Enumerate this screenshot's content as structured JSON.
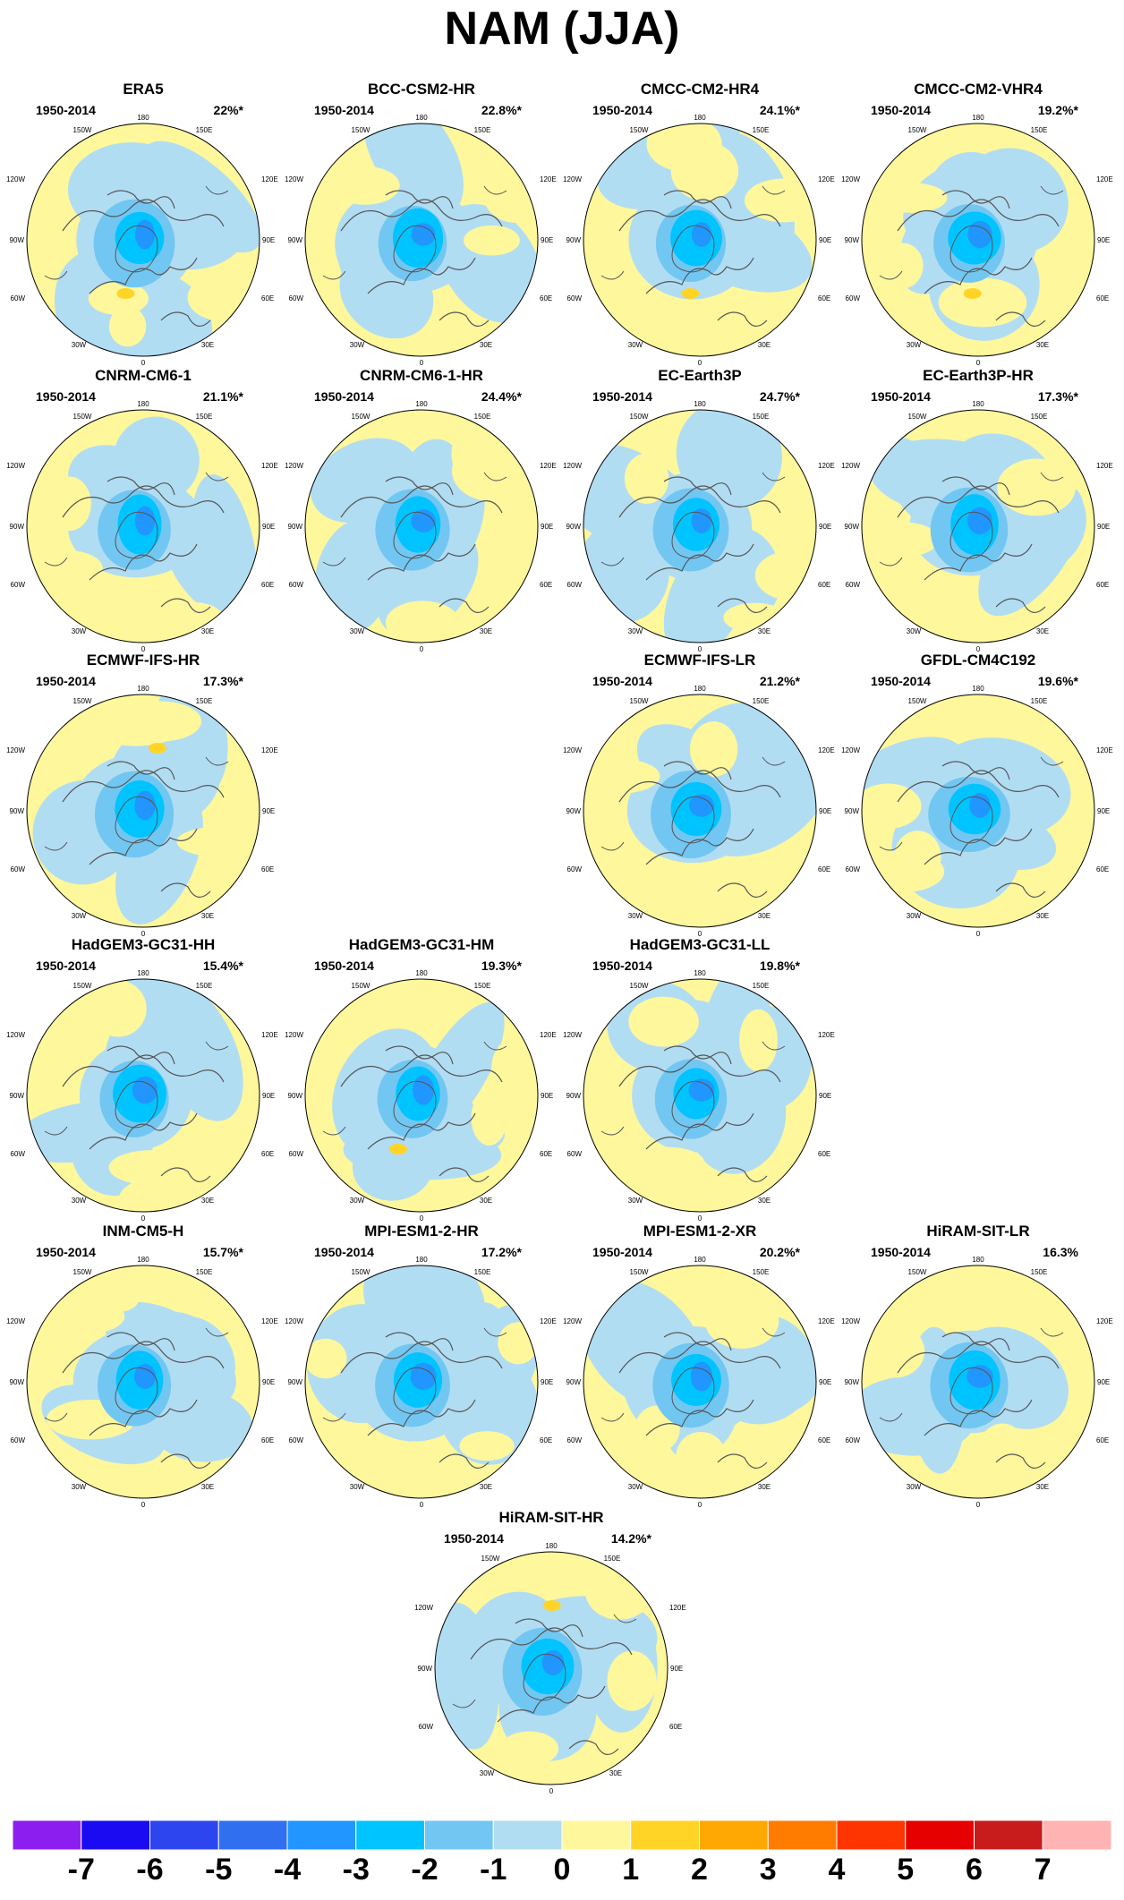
{
  "title": "NAM (JJA)",
  "period": "1950-2014",
  "lon_labels": [
    "180",
    "150W",
    "150E",
    "120W",
    "120E",
    "90W",
    "90E",
    "60W",
    "60E",
    "30W",
    "30E",
    "0"
  ],
  "panels": [
    {
      "name": "ERA5",
      "pct": "22%*",
      "variant": 0
    },
    {
      "name": "BCC-CSM2-HR",
      "pct": "22.8%*",
      "variant": 1
    },
    {
      "name": "CMCC-CM2-HR4",
      "pct": "24.1%*",
      "variant": 2
    },
    {
      "name": "CMCC-CM2-VHR4",
      "pct": "19.2%*",
      "variant": 3
    },
    {
      "name": "CNRM-CM6-1",
      "pct": "21.1%*",
      "variant": 4
    },
    {
      "name": "CNRM-CM6-1-HR",
      "pct": "24.4%*",
      "variant": 5
    },
    {
      "name": "EC-Earth3P",
      "pct": "24.7%*",
      "variant": 6
    },
    {
      "name": "EC-Earth3P-HR",
      "pct": "17.3%*",
      "variant": 7
    },
    {
      "name": "ECMWF-IFS-HR",
      "pct": "17.3%*",
      "variant": 8
    },
    {
      "name": "ECMWF-IFS-LR",
      "pct": "21.2%*",
      "variant": 9
    },
    {
      "name": "GFDL-CM4C192",
      "pct": "19.6%*",
      "variant": 10
    },
    {
      "name": "HadGEM3-GC31-HH",
      "pct": "15.4%*",
      "variant": 11
    },
    {
      "name": "HadGEM3-GC31-HM",
      "pct": "19.3%*",
      "variant": 12
    },
    {
      "name": "HadGEM3-GC31-LL",
      "pct": "19.8%*",
      "variant": 13
    },
    {
      "name": "INM-CM5-H",
      "pct": "15.7%*",
      "variant": 14
    },
    {
      "name": "MPI-ESM1-2-HR",
      "pct": "17.2%*",
      "variant": 15
    },
    {
      "name": "MPI-ESM1-2-XR",
      "pct": "20.2%*",
      "variant": 16
    },
    {
      "name": "HiRAM-SIT-LR",
      "pct": "16.3%",
      "variant": 17
    },
    {
      "name": "HiRAM-SIT-HR",
      "pct": "14.2%*",
      "variant": 18
    }
  ],
  "colorbar": {
    "labels": [
      "-7",
      "-6",
      "-5",
      "-4",
      "-3",
      "-2",
      "-1",
      "0",
      "1",
      "2",
      "3",
      "4",
      "5",
      "6",
      "7"
    ],
    "colors": [
      "#8c1ff0",
      "#1a0bf2",
      "#2d45ee",
      "#2f6ff0",
      "#2196ff",
      "#00c4ff",
      "#72c7f2",
      "#b1ddf3",
      "#fff79c",
      "#ffd426",
      "#ffa702",
      "#ff7c00",
      "#ff3500",
      "#e70000",
      "#c71b1c",
      "#ffb3b3"
    ]
  }
}
